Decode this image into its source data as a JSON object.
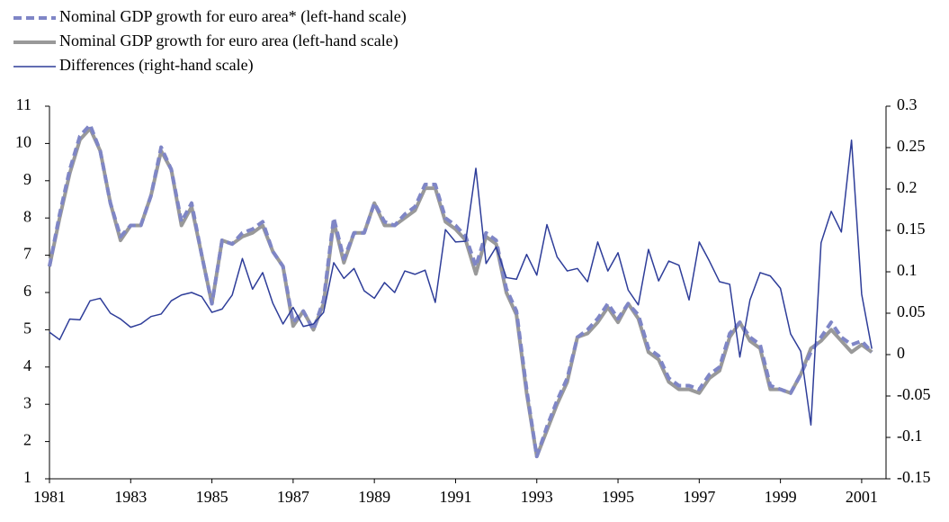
{
  "chart_data": {
    "type": "line",
    "x": [
      1981,
      1981.25,
      1981.5,
      1981.75,
      1982,
      1982.25,
      1982.5,
      1982.75,
      1983,
      1983.25,
      1983.5,
      1983.75,
      1984,
      1984.25,
      1984.5,
      1984.75,
      1985,
      1985.25,
      1985.5,
      1985.75,
      1986,
      1986.25,
      1986.5,
      1986.75,
      1987,
      1987.25,
      1987.5,
      1987.75,
      1988,
      1988.25,
      1988.5,
      1988.75,
      1989,
      1989.25,
      1989.5,
      1989.75,
      1990,
      1990.25,
      1990.5,
      1990.75,
      1991,
      1991.25,
      1991.5,
      1991.75,
      1992,
      1992.25,
      1992.5,
      1992.75,
      1993,
      1993.25,
      1993.5,
      1993.75,
      1994,
      1994.25,
      1994.5,
      1994.75,
      1995,
      1995.25,
      1995.5,
      1995.75,
      1996,
      1996.25,
      1996.5,
      1996.75,
      1997,
      1997.25,
      1997.5,
      1997.75,
      1998,
      1998.25,
      1998.5,
      1998.75,
      1999,
      1999.25,
      1999.5,
      1999.75,
      2000,
      2000.25,
      2000.5,
      2000.75,
      2001,
      2001.25
    ],
    "series": [
      {
        "name": "Nominal GDP growth for euro area (left-hand scale)",
        "color": "#999999",
        "style": "solid-thick",
        "axis": "y",
        "values": [
          6.7,
          8.0,
          9.2,
          10.1,
          10.4,
          9.8,
          8.4,
          7.4,
          7.8,
          7.8,
          8.6,
          9.8,
          9.3,
          7.8,
          8.3,
          7.0,
          5.7,
          7.4,
          7.3,
          7.5,
          7.6,
          7.8,
          7.1,
          6.7,
          5.1,
          5.5,
          5.0,
          5.7,
          7.9,
          6.8,
          7.6,
          7.6,
          8.4,
          7.8,
          7.8,
          8.0,
          8.2,
          8.8,
          8.8,
          7.9,
          7.7,
          7.4,
          6.5,
          7.5,
          7.3,
          6.0,
          5.4,
          3.3,
          1.6,
          2.3,
          3.0,
          3.6,
          4.8,
          4.9,
          5.2,
          5.6,
          5.2,
          5.7,
          5.3,
          4.4,
          4.2,
          3.6,
          3.4,
          3.4,
          3.3,
          3.7,
          3.9,
          4.8,
          5.2,
          4.7,
          4.5,
          3.4,
          3.4,
          3.3,
          3.8,
          4.5,
          4.7,
          5.0,
          4.7,
          4.4,
          4.6,
          4.4
        ]
      },
      {
        "name": "Nominal GDP growth for euro area* (left-hand scale)",
        "color": "#7f86c6",
        "style": "dashed",
        "axis": "y",
        "values": [
          6.7,
          8.1,
          9.3,
          10.2,
          10.5,
          9.8,
          8.4,
          7.5,
          7.8,
          7.8,
          8.6,
          9.9,
          9.3,
          7.9,
          8.4,
          7.0,
          5.7,
          7.4,
          7.3,
          7.6,
          7.7,
          7.9,
          7.1,
          6.7,
          5.2,
          5.5,
          5.0,
          5.8,
          8.0,
          6.9,
          7.6,
          7.6,
          8.4,
          7.9,
          7.8,
          8.1,
          8.3,
          8.9,
          8.9,
          8.0,
          7.8,
          7.5,
          6.7,
          7.6,
          7.4,
          6.1,
          5.5,
          3.4,
          1.6,
          2.4,
          3.1,
          3.7,
          4.8,
          5.0,
          5.3,
          5.7,
          5.3,
          5.7,
          5.4,
          4.5,
          4.3,
          3.7,
          3.5,
          3.5,
          3.4,
          3.8,
          4.0,
          4.9,
          5.2,
          4.8,
          4.6,
          3.5,
          3.4,
          3.3,
          3.8,
          4.4,
          4.8,
          5.2,
          4.8,
          4.6,
          4.7,
          4.4
        ]
      },
      {
        "name": "Differences (right-hand scale)",
        "color": "#2e3d99",
        "style": "thin",
        "axis": "y2",
        "values": [
          0.027,
          0.018,
          0.043,
          0.042,
          0.065,
          0.068,
          0.05,
          0.043,
          0.033,
          0.037,
          0.046,
          0.049,
          0.065,
          0.072,
          0.075,
          0.07,
          0.051,
          0.055,
          0.072,
          0.116,
          0.079,
          0.099,
          0.062,
          0.037,
          0.057,
          0.034,
          0.037,
          0.051,
          0.111,
          0.092,
          0.104,
          0.077,
          0.068,
          0.087,
          0.075,
          0.101,
          0.097,
          0.102,
          0.063,
          0.151,
          0.136,
          0.137,
          0.225,
          0.11,
          0.13,
          0.093,
          0.091,
          0.121,
          0.096,
          0.157,
          0.118,
          0.101,
          0.104,
          0.088,
          0.136,
          0.101,
          0.123,
          0.078,
          0.06,
          0.127,
          0.089,
          0.113,
          0.108,
          0.066,
          0.136,
          0.113,
          0.088,
          0.085,
          -0.003,
          0.066,
          0.099,
          0.095,
          0.08,
          0.025,
          0.004,
          -0.085,
          0.135,
          0.173,
          0.148,
          0.259,
          0.073,
          0.007
        ]
      }
    ],
    "legend_order": [
      1,
      0,
      2
    ],
    "xlim": [
      1981,
      2001.6
    ],
    "xticks": [
      1981,
      1983,
      1985,
      1987,
      1989,
      1991,
      1993,
      1995,
      1997,
      1999,
      2001
    ],
    "ylim": [
      1,
      11
    ],
    "yticks": [
      1,
      2,
      3,
      4,
      5,
      6,
      7,
      8,
      9,
      10,
      11
    ],
    "y2lim": [
      -0.15,
      0.3
    ],
    "y2ticks": [
      -0.15,
      -0.1,
      -0.05,
      0,
      0.05,
      0.1,
      0.15,
      0.2,
      0.25,
      0.3
    ],
    "grid": false
  }
}
